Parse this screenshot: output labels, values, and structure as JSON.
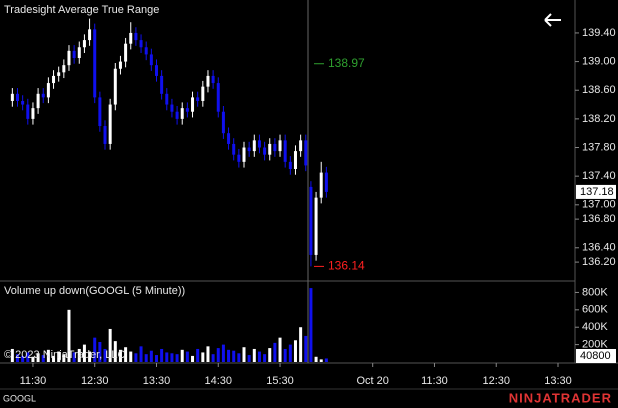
{
  "chart_data": [
    {
      "type": "candlestick",
      "title": "Tradesight Average True Range",
      "x": [
        -4,
        -3,
        -2,
        -1,
        0,
        1,
        2,
        3,
        4,
        5,
        6,
        7,
        8,
        9,
        10,
        11,
        12,
        13,
        14,
        15,
        16,
        17,
        18,
        19,
        20,
        21,
        22,
        23,
        24,
        25,
        26,
        27,
        28,
        29,
        30,
        31,
        32,
        33,
        34,
        35,
        36,
        37,
        38,
        39,
        40,
        41,
        42,
        43,
        44,
        45,
        46,
        47,
        48,
        49,
        50,
        51,
        52,
        53,
        54,
        55,
        56,
        57
      ],
      "open": [
        138.45,
        138.55,
        138.45,
        138.4,
        138.2,
        138.35,
        138.55,
        138.5,
        138.7,
        138.8,
        138.85,
        138.95,
        139.15,
        139.05,
        139.2,
        139.3,
        139.45,
        138.5,
        138.1,
        137.85,
        138.4,
        138.9,
        139.0,
        139.25,
        139.4,
        139.3,
        139.2,
        139.1,
        138.95,
        138.8,
        138.55,
        138.4,
        138.3,
        138.2,
        138.35,
        138.3,
        138.5,
        138.45,
        138.65,
        138.8,
        138.7,
        138.3,
        138.0,
        137.85,
        137.7,
        137.6,
        137.8,
        137.75,
        137.9,
        137.8,
        137.7,
        137.85,
        137.75,
        137.9,
        137.6,
        137.5,
        137.75,
        137.9,
        137.25,
        136.3,
        137.1,
        137.45
      ],
      "high": [
        138.63,
        138.63,
        138.53,
        138.48,
        138.43,
        138.63,
        138.63,
        138.78,
        138.88,
        138.93,
        139.03,
        139.23,
        139.23,
        139.28,
        139.38,
        139.6,
        139.53,
        138.58,
        138.18,
        138.48,
        138.98,
        139.08,
        139.33,
        139.55,
        139.48,
        139.38,
        139.28,
        139.18,
        139.03,
        138.88,
        138.63,
        138.48,
        138.38,
        138.43,
        138.43,
        138.58,
        138.58,
        138.73,
        138.88,
        138.88,
        138.78,
        138.38,
        138.08,
        137.93,
        137.78,
        137.88,
        137.88,
        137.98,
        137.98,
        137.88,
        137.93,
        137.93,
        137.98,
        137.98,
        137.68,
        137.83,
        137.98,
        137.98,
        137.33,
        137.18,
        137.6,
        137.53
      ],
      "low": [
        138.37,
        138.37,
        138.32,
        138.12,
        138.12,
        138.27,
        138.42,
        138.42,
        138.62,
        138.72,
        138.77,
        138.87,
        138.97,
        138.97,
        139.12,
        139.22,
        138.42,
        138.02,
        137.77,
        137.77,
        138.32,
        138.82,
        138.92,
        139.17,
        139.22,
        139.12,
        139.02,
        138.87,
        138.72,
        138.47,
        138.32,
        138.22,
        138.12,
        138.12,
        138.22,
        138.22,
        138.37,
        138.37,
        138.57,
        138.62,
        138.22,
        137.92,
        137.77,
        137.62,
        137.52,
        137.52,
        137.67,
        137.67,
        137.72,
        137.62,
        137.62,
        137.67,
        137.67,
        137.52,
        137.42,
        137.42,
        137.67,
        137.47,
        136.14,
        136.22,
        137.02,
        137.1
      ],
      "close": [
        138.55,
        138.45,
        138.4,
        138.2,
        138.35,
        138.55,
        138.5,
        138.7,
        138.8,
        138.85,
        138.95,
        139.15,
        139.05,
        139.2,
        139.3,
        139.45,
        138.5,
        138.1,
        137.85,
        138.4,
        138.9,
        139.0,
        139.25,
        139.4,
        139.3,
        139.2,
        139.1,
        138.95,
        138.8,
        138.55,
        138.4,
        138.3,
        138.2,
        138.35,
        138.3,
        138.5,
        138.45,
        138.65,
        138.8,
        138.7,
        138.3,
        138.0,
        137.85,
        137.7,
        137.6,
        137.8,
        137.75,
        137.9,
        137.8,
        137.7,
        137.85,
        137.75,
        137.9,
        137.6,
        137.5,
        137.75,
        137.9,
        137.55,
        136.3,
        137.1,
        137.45,
        137.18
      ],
      "up_color": "#ffffff",
      "down_color": "#1010ee",
      "annotations": [
        {
          "value": 138.97,
          "color": "#2fa02f"
        },
        {
          "value": 136.14,
          "color": "#ff2020"
        }
      ],
      "xlim": [
        -6.4,
        105.3
      ],
      "xticks": [
        {
          "value": 0,
          "label": "11:30"
        },
        {
          "value": 12,
          "label": "12:30"
        },
        {
          "value": 24,
          "label": "13:30"
        },
        {
          "value": 36,
          "label": "14:30"
        },
        {
          "value": 48,
          "label": "15:30"
        },
        {
          "value": 66,
          "label": "Oct 20"
        },
        {
          "value": 78,
          "label": "11:30"
        },
        {
          "value": 90,
          "label": "12:30"
        },
        {
          "value": 102,
          "label": "13:30"
        }
      ],
      "ylim": [
        135.95,
        139.86
      ],
      "yticks": [
        {
          "value": 136.2,
          "label": "136.20"
        },
        {
          "value": 136.4,
          "label": "136.40"
        },
        {
          "value": 136.8,
          "label": "136.80"
        },
        {
          "value": 137.0,
          "label": "137.00"
        },
        {
          "value": 137.4,
          "label": "137.40"
        },
        {
          "value": 137.8,
          "label": "137.80"
        },
        {
          "value": 138.2,
          "label": "138.20"
        },
        {
          "value": 138.6,
          "label": "138.60"
        },
        {
          "value": 139.0,
          "label": "139.00"
        },
        {
          "value": 139.4,
          "label": "139.40"
        }
      ]
    },
    {
      "type": "bar",
      "title": "Volume up down(GOOGL (5 Minute))",
      "values": [
        150000,
        90000,
        70000,
        110000,
        60000,
        100000,
        80000,
        140000,
        70000,
        120000,
        90000,
        600000,
        110000,
        150000,
        200000,
        120000,
        280000,
        230000,
        150000,
        380000,
        240000,
        140000,
        170000,
        120000,
        100000,
        180000,
        90000,
        130000,
        80000,
        150000,
        110000,
        100000,
        90000,
        140000,
        120000,
        70000,
        150000,
        110000,
        180000,
        90000,
        160000,
        200000,
        140000,
        130000,
        100000,
        170000,
        80000,
        150000,
        120000,
        90000,
        160000,
        220000,
        280000,
        150000,
        200000,
        250000,
        400000,
        300000,
        850000,
        60000,
        30000,
        40800
      ],
      "ylim": [
        0,
        920000
      ],
      "yticks": [
        {
          "value": 200000,
          "label": "200K"
        },
        {
          "value": 400000,
          "label": "400K"
        },
        {
          "value": 600000,
          "label": "600K"
        },
        {
          "value": 800000,
          "label": "800K"
        }
      ]
    }
  ],
  "copyright": "© 2023 NinjaTrader, LLC",
  "instrument": "GOOGL",
  "brand": "NINJATRADER"
}
